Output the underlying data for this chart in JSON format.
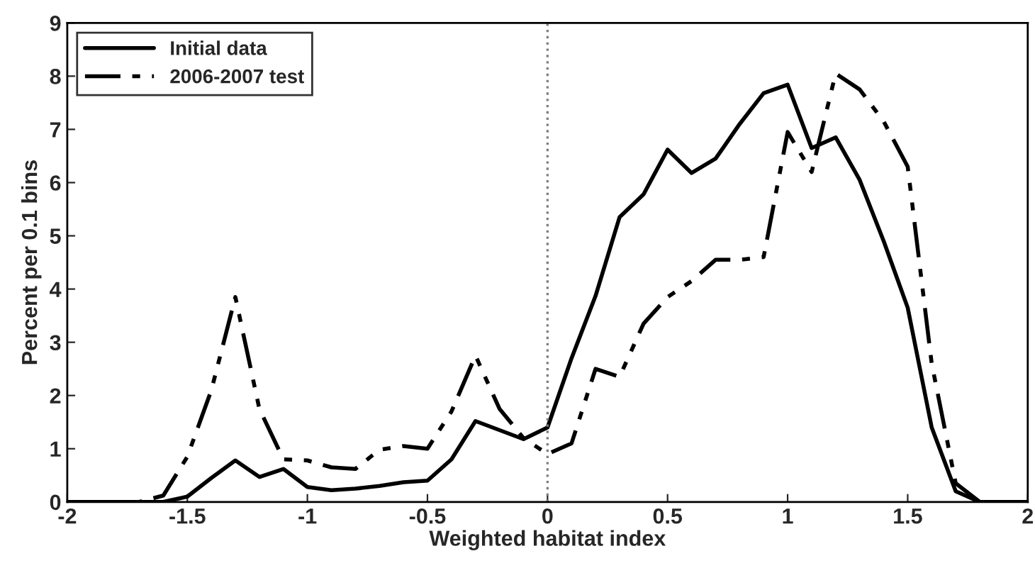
{
  "chart_data": {
    "type": "line",
    "xlabel": "Weighted habitat index",
    "ylabel": "Percent per 0.1 bins",
    "x": [
      -2.0,
      -1.9,
      -1.8,
      -1.7,
      -1.6,
      -1.5,
      -1.4,
      -1.3,
      -1.2,
      -1.1,
      -1.0,
      -0.9,
      -0.8,
      -0.7,
      -0.6,
      -0.5,
      -0.4,
      -0.3,
      -0.2,
      -0.1,
      0.0,
      0.1,
      0.2,
      0.3,
      0.4,
      0.5,
      0.6,
      0.7,
      0.8,
      0.9,
      1.0,
      1.1,
      1.2,
      1.3,
      1.4,
      1.5,
      1.6,
      1.7,
      1.8,
      1.9,
      2.0
    ],
    "series": [
      {
        "name": "Initial data",
        "color": "#000000",
        "line_style": "solid",
        "values": [
          0,
          0,
          0,
          0,
          0,
          0.1,
          0.45,
          0.78,
          0.47,
          0.62,
          0.28,
          0.22,
          0.25,
          0.3,
          0.37,
          0.4,
          0.8,
          1.52,
          1.35,
          1.18,
          1.4,
          2.7,
          3.87,
          5.35,
          5.78,
          6.62,
          6.18,
          6.45,
          7.1,
          7.68,
          7.84,
          6.65,
          6.85,
          6.05,
          4.9,
          3.65,
          1.4,
          0.2,
          0,
          0,
          0
        ]
      },
      {
        "name": "2006-2007 test",
        "color": "#000000",
        "line_style": "dashed",
        "values": [
          0,
          0,
          0,
          0,
          0.12,
          0.85,
          2.1,
          3.85,
          1.75,
          0.8,
          0.78,
          0.65,
          0.62,
          0.98,
          1.05,
          1.0,
          1.7,
          2.75,
          1.75,
          1.2,
          0.9,
          1.1,
          2.5,
          2.35,
          3.35,
          3.85,
          4.15,
          4.55,
          4.55,
          4.6,
          6.95,
          6.2,
          8.05,
          7.75,
          7.15,
          6.3,
          2.6,
          0.35,
          0,
          null,
          null
        ]
      }
    ],
    "xlim": [
      -2,
      2
    ],
    "xticks": [
      -2,
      -1.5,
      -1,
      -0.5,
      0,
      0.5,
      1,
      1.5,
      2
    ],
    "ylim": [
      0,
      9
    ],
    "yticks": [
      0,
      1,
      2,
      3,
      4,
      5,
      6,
      7,
      8,
      9
    ],
    "ref_lines": [
      {
        "axis": "x",
        "value": 0,
        "color": "#808080",
        "line_style": "dotted"
      }
    ],
    "grid": false,
    "legend": "top left",
    "marker": "none"
  }
}
